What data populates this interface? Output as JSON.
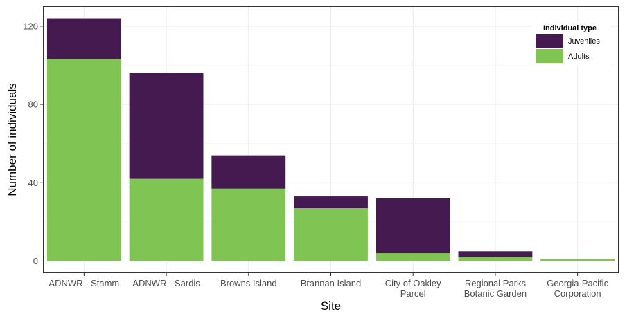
{
  "chart_data": {
    "type": "bar",
    "stacked": true,
    "title": "",
    "xlabel": "Site",
    "ylabel": "Number of individuals",
    "ylim": [
      0,
      124
    ],
    "yticks": [
      0,
      40,
      80,
      120
    ],
    "grid": true,
    "legend_position": "top-right",
    "legend_title": "Individual type",
    "categories": [
      [
        "ADNWR - Stamm"
      ],
      [
        "ADNWR - Sardis"
      ],
      [
        "Browns Island"
      ],
      [
        "Brannan Island"
      ],
      [
        "City of Oakley",
        "Parcel"
      ],
      [
        "Regional Parks",
        "Botanic Garden"
      ],
      [
        "Georgia-Pacific",
        "Corporation"
      ]
    ],
    "series": [
      {
        "name": "Adults",
        "color": "#80c454",
        "values": [
          103,
          42,
          37,
          27,
          4,
          2,
          1
        ]
      },
      {
        "name": "Juveniles",
        "color": "#451a51",
        "values": [
          21,
          54,
          17,
          6,
          28,
          3,
          0
        ]
      }
    ],
    "legend_order": [
      "Juveniles",
      "Adults"
    ]
  }
}
